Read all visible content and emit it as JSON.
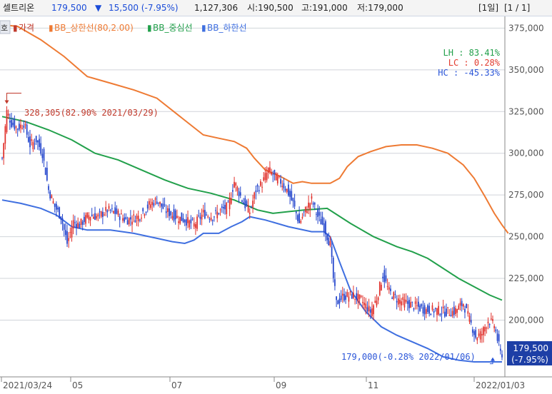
{
  "header": {
    "stock_name": "셀트리온",
    "price": "179,500",
    "change_arrow": "▼",
    "change": "15,500 (-7.95%)",
    "volume": "1,127,306",
    "open": "시:190,500",
    "high": "고:191,000",
    "low": "저:179,000",
    "period_button": "[1일]",
    "page_button": "[1 / 1]"
  },
  "legend": {
    "side_tab": "호",
    "items": [
      {
        "marker": "▮",
        "label": "가격",
        "color": "#c0392b"
      },
      {
        "marker": "▮",
        "label": "BB_상한선(80,2.00)",
        "color": "#ee7a33"
      },
      {
        "marker": "▮",
        "label": "BB_중심선",
        "color": "#22a04b"
      },
      {
        "marker": "▮",
        "label": "BB_하한선",
        "color": "#3f6fe0"
      }
    ]
  },
  "stats": [
    {
      "label": "LH",
      "value": "83.41%",
      "color": "#22a04b"
    },
    {
      "label": "LC",
      "value": "0.28%",
      "color": "#e23b2e"
    },
    {
      "label": "HC",
      "value": "-45.33%",
      "color": "#2a55d8"
    }
  ],
  "annotations": {
    "high": "328,305(82.90% 2021/03/29)",
    "low": "179,000(-0.28% 2022/01/06)"
  },
  "price_box": {
    "price": "179,500",
    "change": "(-7.95%)"
  },
  "colors": {
    "up": "#e0302b",
    "down": "#2244cc",
    "upper": "#ee7a33",
    "middle": "#22a04b",
    "lower": "#3f6fe0",
    "grid": "#d0d4da",
    "axis_text": "#555555",
    "price_box": "#1d3fa6"
  },
  "chart_data": {
    "type": "candlestick",
    "x_axis_labels": [
      "2021/03/24",
      "05",
      "07",
      "09",
      "11",
      "2022/01/03"
    ],
    "y_axis_labels": [
      "375,000",
      "350,000",
      "325,000",
      "300,000",
      "275,000",
      "250,000",
      "225,000",
      "200,000"
    ],
    "ylim": [
      166000,
      382000
    ],
    "grid": true,
    "series": [
      {
        "name": "BB_상한선(80,2.00)",
        "points": [
          [
            0,
            377000
          ],
          [
            10,
            376000
          ],
          [
            25,
            368000
          ],
          [
            40,
            358000
          ],
          [
            55,
            346000
          ],
          [
            70,
            342000
          ],
          [
            85,
            338000
          ],
          [
            100,
            333000
          ],
          [
            115,
            322000
          ],
          [
            130,
            311000
          ],
          [
            140,
            309000
          ],
          [
            150,
            307000
          ],
          [
            158,
            303000
          ],
          [
            163,
            297000
          ],
          [
            170,
            290000
          ],
          [
            180,
            286000
          ],
          [
            188,
            282000
          ],
          [
            194,
            283000
          ],
          [
            200,
            282000
          ],
          [
            205,
            282000
          ],
          [
            212,
            282000
          ],
          [
            218,
            285000
          ],
          [
            223,
            292000
          ],
          [
            230,
            298000
          ],
          [
            238,
            301000
          ],
          [
            248,
            304000
          ],
          [
            258,
            305000
          ],
          [
            268,
            305000
          ],
          [
            278,
            303000
          ],
          [
            288,
            300000
          ],
          [
            298,
            293000
          ],
          [
            305,
            285000
          ],
          [
            312,
            274000
          ],
          [
            318,
            264000
          ],
          [
            323,
            257000
          ],
          [
            327,
            252000
          ]
        ]
      },
      {
        "name": "BB_중심선",
        "points": [
          [
            0,
            322000
          ],
          [
            15,
            319000
          ],
          [
            30,
            314000
          ],
          [
            45,
            308000
          ],
          [
            60,
            300000
          ],
          [
            75,
            296000
          ],
          [
            90,
            290000
          ],
          [
            105,
            284000
          ],
          [
            120,
            279000
          ],
          [
            135,
            276000
          ],
          [
            150,
            272000
          ],
          [
            165,
            266000
          ],
          [
            175,
            264000
          ],
          [
            185,
            265000
          ],
          [
            195,
            266000
          ],
          [
            210,
            267000
          ],
          [
            215,
            264000
          ],
          [
            225,
            258000
          ],
          [
            240,
            250000
          ],
          [
            255,
            244000
          ],
          [
            265,
            241000
          ],
          [
            275,
            237000
          ],
          [
            285,
            231000
          ],
          [
            295,
            225000
          ],
          [
            305,
            220000
          ],
          [
            315,
            215000
          ],
          [
            323,
            212000
          ]
        ]
      },
      {
        "name": "BB_하한선",
        "points": [
          [
            0,
            272000
          ],
          [
            12,
            270000
          ],
          [
            25,
            267000
          ],
          [
            35,
            263000
          ],
          [
            45,
            256000
          ],
          [
            55,
            254000
          ],
          [
            70,
            254000
          ],
          [
            85,
            252000
          ],
          [
            100,
            249000
          ],
          [
            110,
            247000
          ],
          [
            118,
            246000
          ],
          [
            124,
            248000
          ],
          [
            130,
            252000
          ],
          [
            140,
            252000
          ],
          [
            148,
            256000
          ],
          [
            155,
            259000
          ],
          [
            160,
            262000
          ],
          [
            170,
            260000
          ],
          [
            185,
            256000
          ],
          [
            200,
            253000
          ],
          [
            208,
            253000
          ],
          [
            212,
            250000
          ],
          [
            218,
            235000
          ],
          [
            225,
            218000
          ],
          [
            235,
            205000
          ],
          [
            245,
            196000
          ],
          [
            255,
            191000
          ],
          [
            265,
            187000
          ],
          [
            275,
            183000
          ],
          [
            285,
            178000
          ],
          [
            295,
            176000
          ],
          [
            305,
            175000
          ],
          [
            315,
            175000
          ],
          [
            323,
            175000
          ]
        ]
      }
    ],
    "high_marker": {
      "index": 3,
      "value": 328305
    },
    "low_marker": {
      "index": 317,
      "value": 179000
    },
    "candles_x_count": 324,
    "close_segments": [
      [
        0,
        297000
      ],
      [
        3,
        325000
      ],
      [
        6,
        318000
      ],
      [
        10,
        315000
      ],
      [
        14,
        318000
      ],
      [
        18,
        305000
      ],
      [
        22,
        308000
      ],
      [
        26,
        300000
      ],
      [
        30,
        278000
      ],
      [
        34,
        268000
      ],
      [
        38,
        262000
      ],
      [
        42,
        246000
      ],
      [
        46,
        259000
      ],
      [
        50,
        257000
      ],
      [
        56,
        263000
      ],
      [
        62,
        262000
      ],
      [
        68,
        266000
      ],
      [
        74,
        264000
      ],
      [
        80,
        260000
      ],
      [
        88,
        262000
      ],
      [
        95,
        269000
      ],
      [
        100,
        272000
      ],
      [
        105,
        266000
      ],
      [
        112,
        262000
      ],
      [
        118,
        260000
      ],
      [
        124,
        257000
      ],
      [
        130,
        264000
      ],
      [
        136,
        262000
      ],
      [
        140,
        265000
      ],
      [
        146,
        268000
      ],
      [
        150,
        283000
      ],
      [
        156,
        270000
      ],
      [
        160,
        265000
      ],
      [
        164,
        278000
      ],
      [
        168,
        282000
      ],
      [
        172,
        290000
      ],
      [
        176,
        286000
      ],
      [
        180,
        283000
      ],
      [
        184,
        278000
      ],
      [
        188,
        270000
      ],
      [
        192,
        258000
      ],
      [
        196,
        266000
      ],
      [
        200,
        272000
      ],
      [
        204,
        262000
      ],
      [
        208,
        256000
      ],
      [
        212,
        245000
      ],
      [
        214,
        225000
      ],
      [
        216,
        210000
      ],
      [
        220,
        214000
      ],
      [
        226,
        215000
      ],
      [
        232,
        212000
      ],
      [
        238,
        205000
      ],
      [
        242,
        213000
      ],
      [
        246,
        227000
      ],
      [
        250,
        217000
      ],
      [
        256,
        212000
      ],
      [
        262,
        210000
      ],
      [
        268,
        208000
      ],
      [
        274,
        206000
      ],
      [
        280,
        206000
      ],
      [
        286,
        205000
      ],
      [
        292,
        205000
      ],
      [
        298,
        210000
      ],
      [
        302,
        200000
      ],
      [
        306,
        190000
      ],
      [
        310,
        192000
      ],
      [
        314,
        200000
      ],
      [
        318,
        197000
      ],
      [
        322,
        180000
      ]
    ]
  }
}
